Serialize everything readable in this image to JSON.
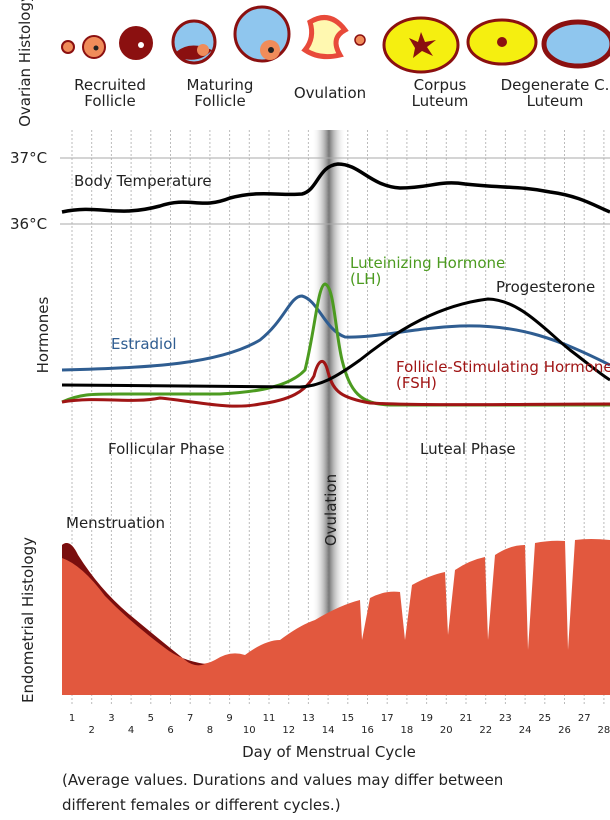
{
  "ovarian_histology": {
    "label": "Ovarian Histology",
    "stages": [
      "Recruited Follicle",
      "Maturing Follicle",
      "Ovulation",
      "Corpus Luteum",
      "Degenerate C. Luteum"
    ]
  },
  "temperature": {
    "title": "Body Temperature",
    "high": "37°C",
    "low": "36°C"
  },
  "hormones": {
    "label": "Hormones",
    "estradiol": "Estradiol",
    "lh": "Luteinizing Hormone (LH)",
    "progesterone": "Progesterone",
    "fsh": "Follicle-Stimulating Hormone (FSH)"
  },
  "phases": {
    "follicular": "Follicular Phase",
    "luteal": "Luteal Phase",
    "ovulation": "Ovulation",
    "menstruation": "Menstruation"
  },
  "endometrial_histology": {
    "label": "Endometrial Histology"
  },
  "x_axis": {
    "title": "Day of Menstrual Cycle",
    "days": [
      1,
      2,
      3,
      4,
      5,
      6,
      7,
      8,
      9,
      10,
      11,
      12,
      13,
      14,
      15,
      16,
      17,
      18,
      19,
      20,
      21,
      22,
      23,
      24,
      25,
      26,
      27,
      28
    ]
  },
  "caption": [
    "(Average values. Durations and values may differ between",
    "different females or different cycles.)"
  ]
}
